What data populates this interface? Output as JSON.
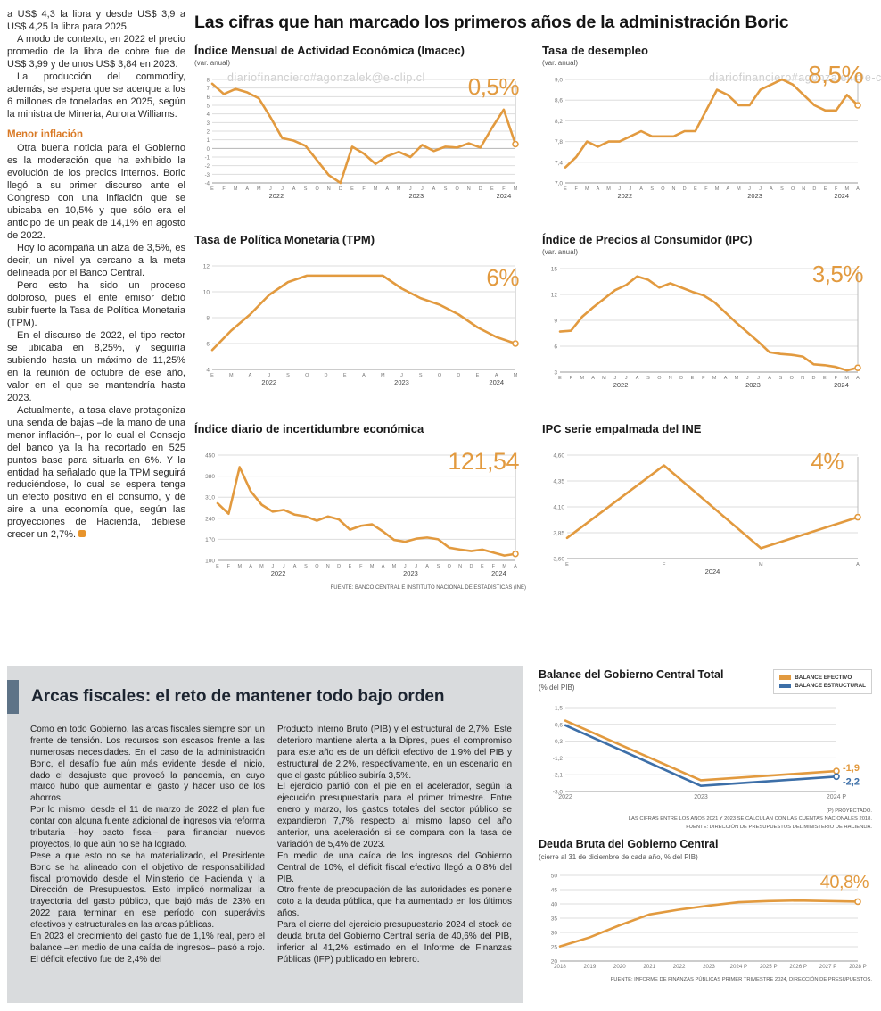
{
  "watermark": "diariofinanciero#agonzalek@e-clip.cl",
  "colors": {
    "accent_orange": "#E29A3F",
    "accent_blue": "#3D6FA8"
  },
  "left_column": {
    "p1": "a US$ 4,3 la libra y desde US$ 3,9 a US$ 4,25 la libra para 2025.",
    "p2": "A modo de contexto, en 2022 el precio promedio de la libra de cobre fue de US$ 3,99 y de unos US$ 3,84 en 2023.",
    "p3": "La producción del commodity, además, se espera que se acerque a los 6 millones de toneladas en 2025, según la ministra de Minería, Aurora Williams.",
    "heading": "Menor inflación",
    "p4": "Otra buena noticia para el Gobierno es la moderación que ha exhibido la evolución de los precios internos. Boric llegó a su primer discurso ante el Congreso con una inflación que se ubicaba en 10,5% y que sólo era el anticipo de un peak de 14,1% en agosto de 2022.",
    "p5": "Hoy lo acompaña un alza de 3,5%, es decir, un nivel ya cercano a la meta delineada por el Banco Central.",
    "p6": "Pero esto ha sido un proceso doloroso, pues el ente emisor debió subir fuerte la Tasa de Política Monetaria (TPM).",
    "p7": "En el discurso de 2022, el tipo rector se ubicaba en 8,25%, y seguiría subiendo hasta un máximo de 11,25% en la reunión de octubre de ese año, valor en el que se mantendría hasta 2023.",
    "p8": "Actualmente, la tasa clave protagoniza una senda de bajas –de la mano de una menor inflación–, por lo cual el Consejo del banco ya la ha recortado en 525 puntos base para situarla en 6%. Y la entidad ha señalado que la TPM seguirá reduciéndose, lo cual se espera tenga un efecto positivo en el consumo, y dé aire a una economía que, según las proyecciones de Hacienda, debiese crecer un 2,7%."
  },
  "main": {
    "title": "Las cifras que han marcado los primeros años de la administración Boric",
    "source_note": "FUENTE: BANCO CENTRAL E INSTITUTO NACIONAL DE ESTADÍSTICAS (INE)"
  },
  "fiscal": {
    "headline": "Arcas fiscales: el reto de mantener todo bajo orden",
    "col1": {
      "p1": "Como en todo Gobierno, las arcas fiscales siempre son un frente de tensión. Los recursos son escasos frente a las numerosas necesidades. En el caso de la administración Boric, el desafío fue aún más evidente desde el inicio, dado el desajuste que provocó la pandemia, en cuyo marco hubo que aumentar el gasto y hacer uso de los ahorros.",
      "p2": "Por lo mismo, desde el 11 de marzo de 2022 el plan fue contar con alguna fuente adicional de ingresos vía reforma tributaria –hoy pacto fiscal– para financiar nuevos proyectos, lo que aún no se ha logrado.",
      "p3": "Pese a que esto no se ha materializado, el Presidente Boric se ha alineado con el objetivo de responsabilidad fiscal promovido desde el Ministerio de Hacienda y la Dirección de Presupuestos. Esto implicó normalizar la trayectoria del gasto público, que bajó más de 23% en 2022 para terminar en ese período con superávits efectivos y estructurales en las arcas públicas.",
      "p4": "En 2023 el crecimiento del gasto fue de 1,1% real, pero el balance –en medio de una caída de ingresos– pasó a rojo. El déficit efectivo fue de 2,4% del"
    },
    "col2": {
      "p1": "Producto Interno Bruto (PIB) y el estructural de 2,7%. Este deterioro mantiene alerta a la Dipres, pues el compromiso para este año es de un déficit efectivo de 1,9% del PIB y estructural de 2,2%, respectivamente, en un escenario en que el gasto público subiría 3,5%.",
      "p2": "El ejercicio partió con el pie en el acelerador, según la ejecución presupuestaria para el primer trimestre. Entre enero y marzo, los gastos totales del sector público se expandieron 7,7% respecto al mismo lapso del año anterior, una aceleración si se compara con la tasa de variación de 5,4% de 2023.",
      "p3": "En medio de una caída de los ingresos del Gobierno Central de 10%, el déficit fiscal efectivo llegó a 0,8% del PIB.",
      "p4": "Otro frente de preocupación de las autoridades es ponerle coto a la deuda pública, que ha aumentado en los últimos años.",
      "p5": "Para el cierre del ejercicio presupuestario 2024 el stock de deuda bruta del Gobierno Central sería de 40,6% del PIB, inferior al 41,2% estimado en el Informe de Finanzas Públicas (IFP) publicado en febrero."
    },
    "balance_notes": [
      "(P) PROYECTADO.",
      "LAS CIFRAS ENTRE LOS AÑOS 2021 Y 2023 SE CALCULAN CON LAS CUENTAS NACIONALES 2018.",
      "FUENTE: DIRECCIÓN DE PRESUPUESTOS DEL MINISTERIO DE HACIENDA."
    ],
    "deuda_source": "FUENTE: INFORME DE FINANZAS PÚBLICAS PRIMER TRIMESTRE 2024, DIRECCIÓN DE PRESUPUESTOS."
  },
  "chart_data": [
    {
      "id": "imacec",
      "type": "line",
      "title": "Índice Mensual de Actividad Económica (Imacec)",
      "subtitle": "(var. anual)",
      "big_label": "0,5%",
      "color": "#E29A3F",
      "leader": true,
      "categories": [
        "E",
        "F",
        "M",
        "A",
        "M",
        "J",
        "J",
        "A",
        "S",
        "O",
        "N",
        "D",
        "E",
        "F",
        "M",
        "A",
        "M",
        "J",
        "J",
        "A",
        "S",
        "O",
        "N",
        "D",
        "E",
        "F",
        "M"
      ],
      "year_groups": [
        {
          "label": "2022",
          "start": 0,
          "end": 11
        },
        {
          "label": "2023",
          "start": 12,
          "end": 23
        },
        {
          "label": "2024",
          "start": 24,
          "end": 26
        }
      ],
      "values": [
        7.5,
        6.3,
        6.9,
        6.5,
        5.8,
        3.6,
        1.2,
        0.9,
        0.3,
        -1.4,
        -3.1,
        -4.0,
        0.2,
        -0.6,
        -1.8,
        -0.9,
        -0.4,
        -1.0,
        0.4,
        -0.3,
        0.2,
        0.1,
        0.6,
        0.1,
        2.4,
        4.5,
        0.5
      ],
      "ylim": [
        -4,
        8
      ],
      "yticks": [
        8,
        7,
        6,
        5,
        4,
        3,
        2,
        1,
        0,
        -1,
        -2,
        -3,
        -4
      ],
      "ytick_labels": [
        "8",
        "7",
        "6",
        "5",
        "4",
        "3",
        "2",
        "1",
        "0",
        "-1",
        "-2",
        "-3",
        "-4"
      ]
    },
    {
      "id": "desempleo",
      "type": "line",
      "title": "Tasa de desempleo",
      "subtitle": "(var. anual)",
      "big_label": "8,5%",
      "color": "#E29A3F",
      "leader": true,
      "categories": [
        "E",
        "F",
        "M",
        "A",
        "M",
        "J",
        "J",
        "A",
        "S",
        "O",
        "N",
        "D",
        "E",
        "F",
        "M",
        "A",
        "M",
        "J",
        "J",
        "A",
        "S",
        "O",
        "N",
        "D",
        "E",
        "F",
        "M",
        "A"
      ],
      "year_groups": [
        {
          "label": "2022",
          "start": 0,
          "end": 11
        },
        {
          "label": "2023",
          "start": 12,
          "end": 23
        },
        {
          "label": "2024",
          "start": 24,
          "end": 27
        }
      ],
      "values": [
        7.3,
        7.5,
        7.8,
        7.7,
        7.8,
        7.8,
        7.9,
        8.0,
        7.9,
        7.9,
        7.9,
        8.0,
        8.0,
        8.4,
        8.8,
        8.7,
        8.5,
        8.5,
        8.8,
        8.9,
        9.0,
        8.9,
        8.7,
        8.5,
        8.4,
        8.4,
        8.7,
        8.5
      ],
      "ylim": [
        7.0,
        9.0
      ],
      "yticks": [
        9.0,
        8.6,
        8.2,
        7.8,
        7.4,
        7.0
      ],
      "ytick_labels": [
        "9,0",
        "8,6",
        "8,2",
        "7,8",
        "7,4",
        "7,0"
      ]
    },
    {
      "id": "tpm",
      "type": "line",
      "title": "Tasa de Política Monetaria (TPM)",
      "big_label": "6%",
      "color": "#E29A3F",
      "leader": true,
      "categories": [
        "E",
        "M",
        "A",
        "J",
        "S",
        "O",
        "D",
        "E",
        "A",
        "M",
        "J",
        "S",
        "O",
        "D",
        "E",
        "A",
        "M"
      ],
      "year_groups": [
        {
          "label": "2022",
          "start": 0,
          "end": 6
        },
        {
          "label": "2023",
          "start": 7,
          "end": 13
        },
        {
          "label": "2024",
          "start": 14,
          "end": 16
        }
      ],
      "values": [
        5.5,
        7.0,
        8.25,
        9.75,
        10.75,
        11.25,
        11.25,
        11.25,
        11.25,
        11.25,
        10.25,
        9.5,
        9.0,
        8.25,
        7.25,
        6.5,
        6.0
      ],
      "ylim": [
        4,
        12
      ],
      "yticks": [
        12,
        10,
        8,
        6,
        4
      ],
      "ytick_labels": [
        "12",
        "10",
        "8",
        "6",
        "4"
      ]
    },
    {
      "id": "ipc",
      "type": "line",
      "title": "Índice de Precios al Consumidor (IPC)",
      "subtitle": "(var. anual)",
      "big_label": "3,5%",
      "color": "#E29A3F",
      "leader": true,
      "categories": [
        "E",
        "F",
        "M",
        "A",
        "M",
        "J",
        "J",
        "A",
        "S",
        "O",
        "N",
        "D",
        "E",
        "F",
        "M",
        "A",
        "M",
        "J",
        "J",
        "A",
        "S",
        "O",
        "N",
        "D",
        "E",
        "F",
        "M",
        "A"
      ],
      "year_groups": [
        {
          "label": "2022",
          "start": 0,
          "end": 11
        },
        {
          "label": "2023",
          "start": 12,
          "end": 23
        },
        {
          "label": "2024",
          "start": 24,
          "end": 27
        }
      ],
      "values": [
        7.7,
        7.8,
        9.4,
        10.5,
        11.5,
        12.5,
        13.1,
        14.1,
        13.7,
        12.8,
        13.3,
        12.8,
        12.3,
        11.9,
        11.1,
        9.9,
        8.7,
        7.6,
        6.5,
        5.3,
        5.1,
        5.0,
        4.8,
        3.9,
        3.8,
        3.6,
        3.2,
        3.5
      ],
      "ylim": [
        3,
        15
      ],
      "yticks": [
        15,
        12,
        9,
        6,
        3
      ],
      "ytick_labels": [
        "15",
        "12",
        "9",
        "6",
        "3"
      ]
    },
    {
      "id": "incertidumbre",
      "type": "line",
      "title": "Índice diario de incertidumbre económica",
      "big_label": "121,54",
      "color": "#E29A3F",
      "leader": true,
      "categories": [
        "E",
        "F",
        "M",
        "A",
        "M",
        "J",
        "J",
        "A",
        "S",
        "O",
        "N",
        "D",
        "E",
        "F",
        "M",
        "A",
        "M",
        "J",
        "J",
        "A",
        "S",
        "O",
        "N",
        "D",
        "E",
        "F",
        "M",
        "A"
      ],
      "year_groups": [
        {
          "label": "2022",
          "start": 0,
          "end": 11
        },
        {
          "label": "2023",
          "start": 12,
          "end": 23
        },
        {
          "label": "2024",
          "start": 24,
          "end": 27
        }
      ],
      "values": [
        290,
        255,
        410,
        330,
        285,
        262,
        268,
        252,
        246,
        232,
        246,
        236,
        202,
        215,
        220,
        196,
        168,
        162,
        172,
        176,
        170,
        142,
        136,
        131,
        136,
        126,
        116,
        121.54
      ],
      "ylim": [
        100,
        450
      ],
      "yticks": [
        450,
        380,
        310,
        240,
        170,
        100
      ],
      "ytick_labels": [
        "450",
        "380",
        "310",
        "240",
        "170",
        "100"
      ]
    },
    {
      "id": "ipc-empalmada",
      "type": "line",
      "title": "IPC serie empalmada del INE",
      "big_label": "4%",
      "color": "#E29A3F",
      "leader": true,
      "categories": [
        "E",
        "F",
        "M",
        "A"
      ],
      "year_groups": [
        {
          "label": "2024",
          "start": 0,
          "end": 3
        }
      ],
      "values": [
        3.8,
        4.5,
        3.7,
        4.0
      ],
      "ylim": [
        3.6,
        4.6
      ],
      "yticks": [
        4.6,
        4.35,
        4.1,
        3.85,
        3.6
      ],
      "ytick_labels": [
        "4,60",
        "4,35",
        "4,10",
        "3,85",
        "3,60"
      ]
    },
    {
      "id": "balance",
      "type": "line",
      "title": "Balance del Gobierno Central Total",
      "subtitle": "(% del PIB)",
      "leader": false,
      "categories": [
        "2022",
        "2023",
        "2024 P"
      ],
      "series": [
        {
          "name": "BALANCE EFECTIVO",
          "color": "#E29A3F",
          "values": [
            0.8,
            -2.4,
            -1.9
          ],
          "end_label": "-1,9",
          "label_dy": -3
        },
        {
          "name": "BALANCE ESTRUCTURAL",
          "color": "#3D6FA8",
          "values": [
            0.55,
            -2.7,
            -2.2
          ],
          "end_label": "-2,2",
          "label_dy": 6
        }
      ],
      "ylim": [
        -3.0,
        1.5
      ],
      "yticks": [
        1.5,
        0.6,
        -0.3,
        -1.2,
        -2.1,
        -3.0
      ],
      "ytick_labels": [
        "1,5",
        "0,6",
        "-0,3",
        "-1,2",
        "-2,1",
        "-3,0"
      ]
    },
    {
      "id": "deuda",
      "type": "line",
      "title": "Deuda Bruta del Gobierno Central",
      "subtitle": "(cierre al 31 de diciembre de cada año, % del PIB)",
      "big_label": "40,8%",
      "color": "#E29A3F",
      "leader": false,
      "categories": [
        "2018",
        "2019",
        "2020",
        "2021",
        "2022",
        "2023",
        "2024 P",
        "2025 P",
        "2026 P",
        "2027 P",
        "2028 P"
      ],
      "values": [
        25.1,
        28.3,
        32.5,
        36.3,
        38.0,
        39.4,
        40.6,
        41.0,
        41.2,
        41.0,
        40.8
      ],
      "ylim": [
        20,
        50
      ],
      "yticks": [
        50,
        45,
        40,
        35,
        30,
        25,
        20
      ],
      "ytick_labels": [
        "50",
        "45",
        "40",
        "35",
        "30",
        "25",
        "20"
      ]
    }
  ]
}
